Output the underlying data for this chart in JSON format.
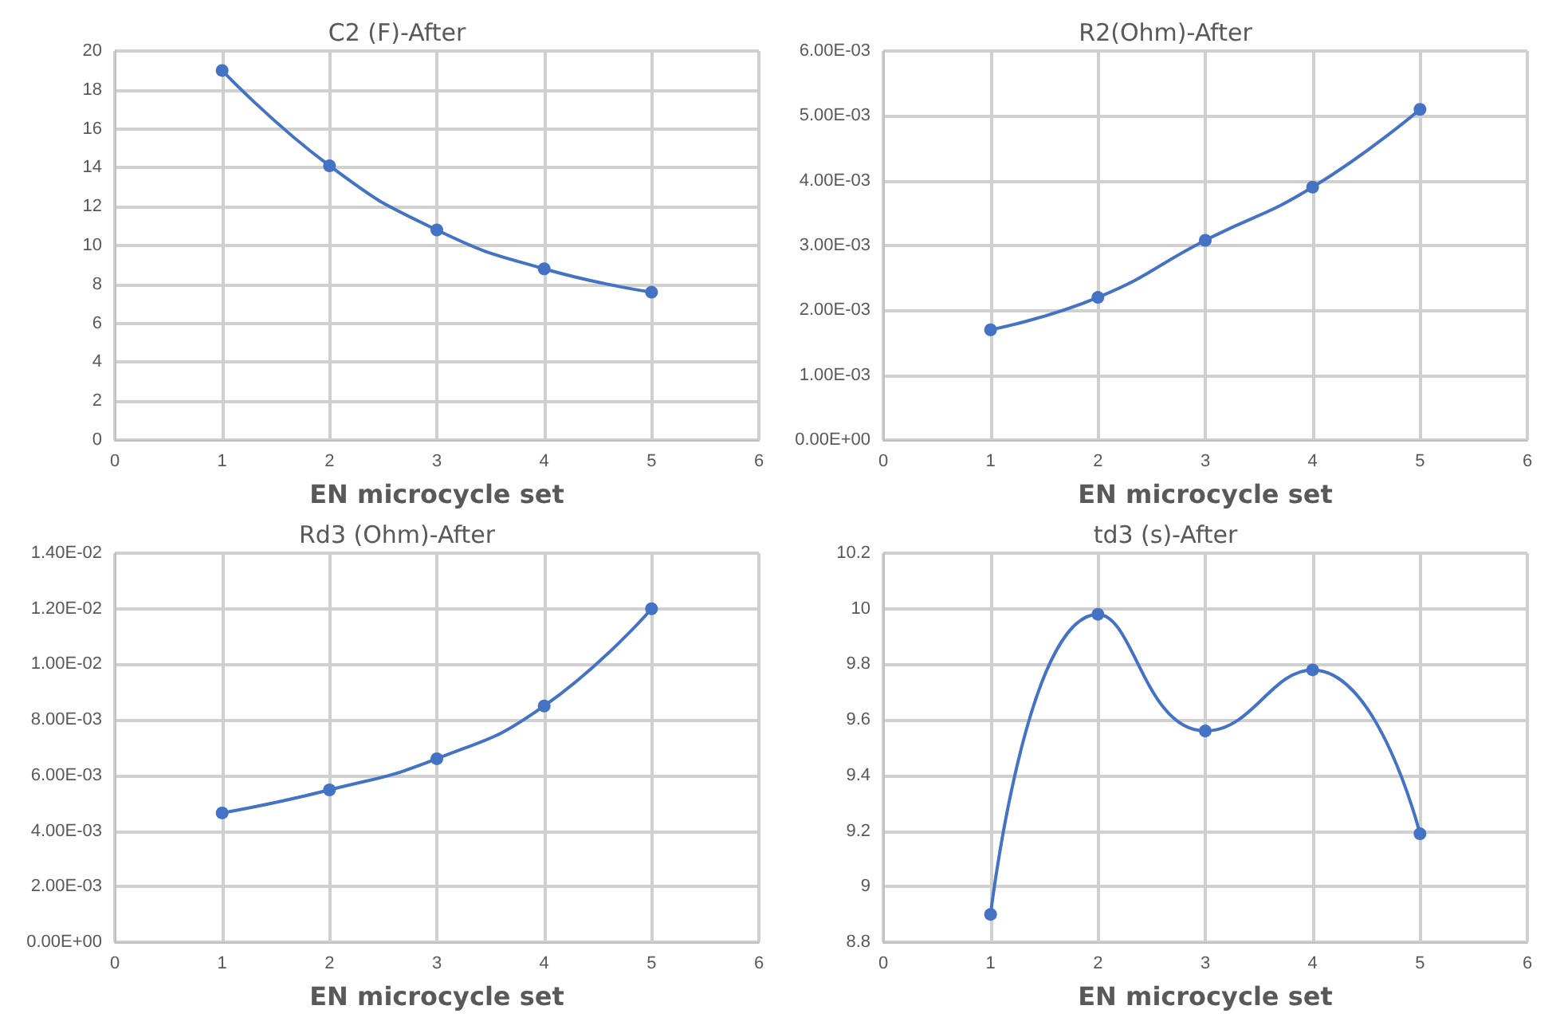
{
  "chart_data": [
    {
      "type": "line",
      "title": "C2 (F)-After",
      "xlabel": "EN microcycle set",
      "x": [
        1,
        2,
        3,
        4,
        5
      ],
      "series": [
        {
          "color": "#4472c4",
          "values": [
            19,
            14.1,
            10.8,
            8.8,
            7.6
          ]
        }
      ],
      "xlim": [
        0,
        6
      ],
      "xticks": [
        0,
        1,
        2,
        3,
        4,
        5,
        6
      ],
      "ylim": [
        0,
        20
      ],
      "yticks": [
        0,
        2,
        4,
        6,
        8,
        10,
        12,
        14,
        16,
        18,
        20
      ],
      "grid": true,
      "marker": "circle",
      "line_style": "solid"
    },
    {
      "type": "line",
      "title": "R2(Ohm)-After",
      "xlabel": "EN microcycle set",
      "x": [
        1,
        2,
        3,
        4,
        5
      ],
      "series": [
        {
          "color": "#4472c4",
          "values": [
            0.0017,
            0.0022,
            0.00308,
            0.0039,
            0.0051
          ]
        }
      ],
      "xlim": [
        0,
        6
      ],
      "xticks": [
        0,
        1,
        2,
        3,
        4,
        5,
        6
      ],
      "ylim": [
        0,
        0.006
      ],
      "yticks": [
        {
          "value": 0,
          "label": "0.00E+00"
        },
        {
          "value": 0.001,
          "label": "1.00E-03"
        },
        {
          "value": 0.002,
          "label": "2.00E-03"
        },
        {
          "value": 0.003,
          "label": "3.00E-03"
        },
        {
          "value": 0.004,
          "label": "4.00E-03"
        },
        {
          "value": 0.005,
          "label": "5.00E-03"
        },
        {
          "value": 0.006,
          "label": "6.00E-03"
        }
      ],
      "grid": true,
      "marker": "circle",
      "line_style": "solid"
    },
    {
      "type": "line",
      "title": "Rd3 (Ohm)-After",
      "xlabel": "EN microcycle set",
      "x": [
        1,
        2,
        3,
        4,
        5
      ],
      "series": [
        {
          "color": "#4472c4",
          "values": [
            0.00465,
            0.00548,
            0.0066,
            0.0085,
            0.012
          ]
        }
      ],
      "xlim": [
        0,
        6
      ],
      "xticks": [
        0,
        1,
        2,
        3,
        4,
        5,
        6
      ],
      "ylim": [
        0,
        0.014
      ],
      "yticks": [
        {
          "value": 0,
          "label": "0.00E+00"
        },
        {
          "value": 0.002,
          "label": "2.00E-03"
        },
        {
          "value": 0.004,
          "label": "4.00E-03"
        },
        {
          "value": 0.006,
          "label": "6.00E-03"
        },
        {
          "value": 0.008,
          "label": "8.00E-03"
        },
        {
          "value": 0.01,
          "label": "1.00E-02"
        },
        {
          "value": 0.012,
          "label": "1.20E-02"
        },
        {
          "value": 0.014,
          "label": "1.40E-02"
        }
      ],
      "grid": true,
      "marker": "circle",
      "line_style": "solid"
    },
    {
      "type": "line",
      "title": "td3 (s)-After",
      "xlabel": "EN microcycle set",
      "x": [
        1,
        2,
        3,
        4,
        5
      ],
      "series": [
        {
          "color": "#4472c4",
          "values": [
            8.9,
            9.98,
            9.56,
            9.78,
            9.19
          ]
        }
      ],
      "xlim": [
        0,
        6
      ],
      "xticks": [
        0,
        1,
        2,
        3,
        4,
        5,
        6
      ],
      "ylim": [
        8.8,
        10.2
      ],
      "yticks": [
        8.8,
        9,
        9.2,
        9.4,
        9.6,
        9.8,
        10,
        10.2
      ],
      "grid": true,
      "marker": "circle",
      "line_style": "solid"
    }
  ]
}
